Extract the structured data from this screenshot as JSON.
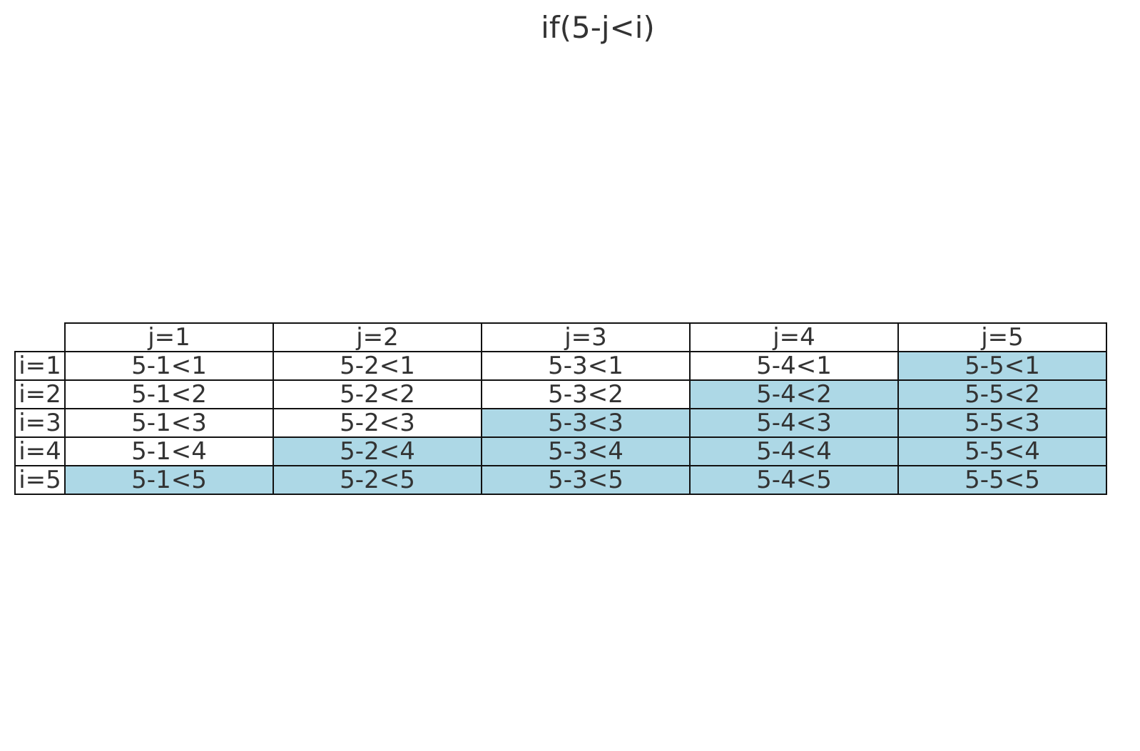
{
  "chart_data": {
    "type": "table",
    "title": "if(5-j<i)",
    "column_headers": [
      "j=1",
      "j=2",
      "j=3",
      "j=4",
      "j=5"
    ],
    "row_headers": [
      "i=1",
      "i=2",
      "i=3",
      "i=4",
      "i=5"
    ],
    "cells": [
      [
        "5-1<1",
        "5-2<1",
        "5-3<1",
        "5-4<1",
        "5-5<1"
      ],
      [
        "5-1<2",
        "5-2<2",
        "5-3<2",
        "5-4<2",
        "5-5<2"
      ],
      [
        "5-1<3",
        "5-2<3",
        "5-3<3",
        "5-4<3",
        "5-5<3"
      ],
      [
        "5-1<4",
        "5-2<4",
        "5-3<4",
        "5-4<4",
        "5-5<4"
      ],
      [
        "5-1<5",
        "5-2<5",
        "5-3<5",
        "5-4<5",
        "5-5<5"
      ]
    ],
    "highlighted": [
      [
        false,
        false,
        false,
        false,
        true
      ],
      [
        false,
        false,
        false,
        true,
        true
      ],
      [
        false,
        false,
        true,
        true,
        true
      ],
      [
        false,
        true,
        true,
        true,
        true
      ],
      [
        true,
        true,
        true,
        true,
        true
      ]
    ],
    "colors": {
      "highlight": "#add8e6",
      "plain": "#ffffff",
      "border": "#111111",
      "text": "#333333"
    }
  }
}
